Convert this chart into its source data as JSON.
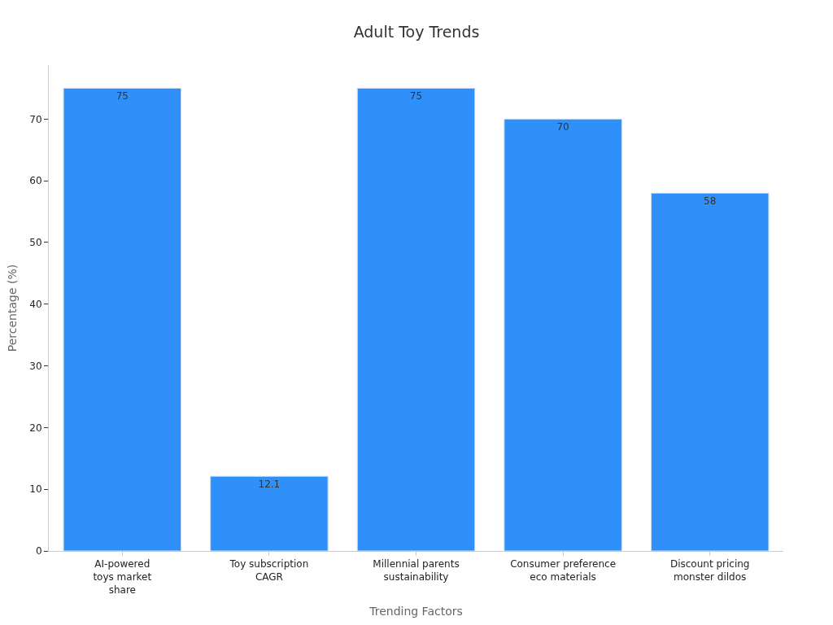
{
  "chart_data": {
    "type": "bar",
    "title": "Adult Toy Trends",
    "xlabel": "Trending Factors",
    "ylabel": "Percentage (%)",
    "categories": [
      "AI-powered\ntoys market\nshare",
      "Toy subscription\nCAGR",
      "Millennial parents\nsustainability",
      "Consumer preference\neco materials",
      "Discount pricing\nmonster dildos"
    ],
    "values": [
      75,
      12.1,
      75,
      70,
      58
    ],
    "color": "#2e90f8",
    "data_labels": true,
    "ylim": [
      0,
      78.75
    ],
    "yticks": [
      0,
      10,
      20,
      30,
      40,
      50,
      60,
      70
    ],
    "grid": false
  }
}
